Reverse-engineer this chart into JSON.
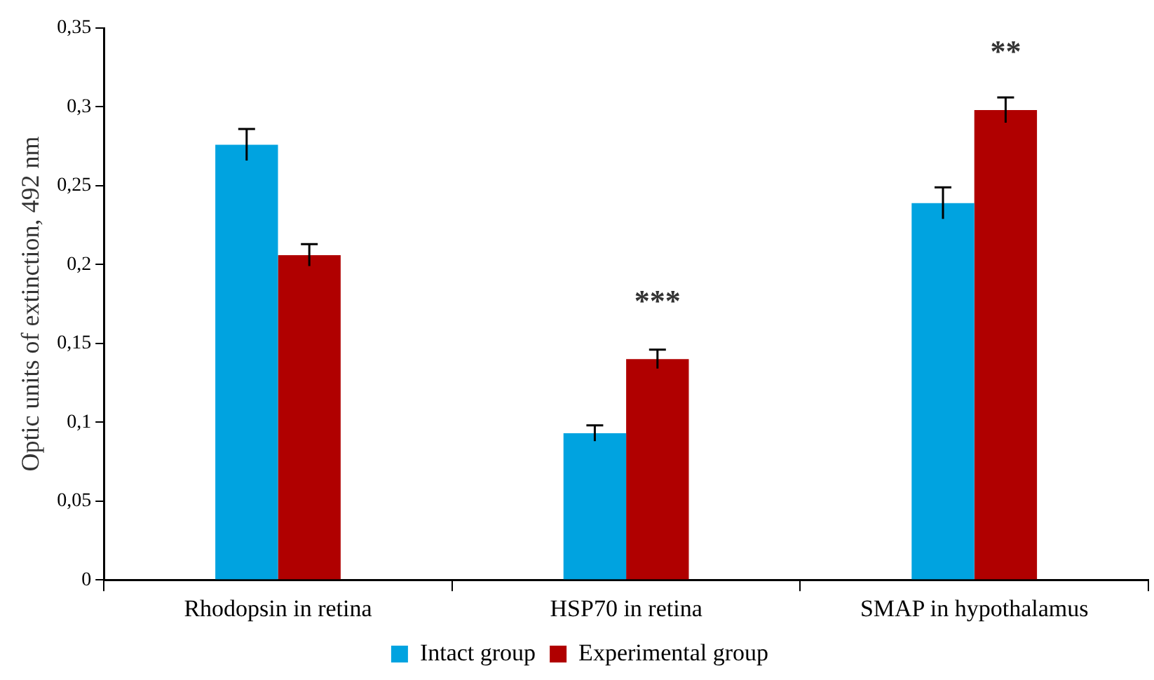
{
  "chart_data": {
    "type": "bar",
    "ylabel": "Optic units of extinction, 492 nm",
    "categories": [
      "Rhodopsin in retina",
      "HSP70 in retina",
      "SMAP in hypothalamus"
    ],
    "series": [
      {
        "name": "Intact group",
        "color": "#00a3e0",
        "values": [
          0.276,
          0.093,
          0.239
        ],
        "errors": [
          0.01,
          0.005,
          0.01
        ]
      },
      {
        "name": "Experimental group",
        "color": "#b00000",
        "values": [
          0.206,
          0.14,
          0.298
        ],
        "errors": [
          0.007,
          0.006,
          0.008
        ]
      }
    ],
    "ylim": [
      0,
      0.35
    ],
    "yticks": [
      {
        "value": 0,
        "label": "0"
      },
      {
        "value": 0.05,
        "label": "0,05"
      },
      {
        "value": 0.1,
        "label": "0,1"
      },
      {
        "value": 0.15,
        "label": "0,15"
      },
      {
        "value": 0.2,
        "label": "0,2"
      },
      {
        "value": 0.25,
        "label": "0,25"
      },
      {
        "value": 0.3,
        "label": "0,3"
      },
      {
        "value": 0.35,
        "label": "0,35"
      }
    ],
    "annotations": [
      {
        "text": "***",
        "x": "HSP70 in retina",
        "y": 0.14
      },
      {
        "text": "**",
        "x": "SMAP in hypothalamus",
        "y": 0.298
      }
    ],
    "grid": false,
    "legend": "bottom"
  }
}
